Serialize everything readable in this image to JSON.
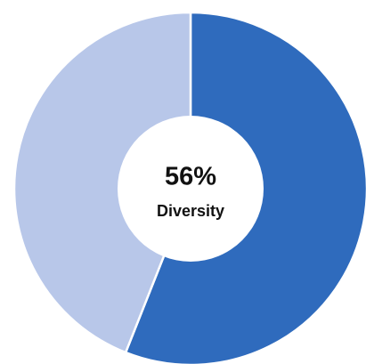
{
  "chart_data": {
    "type": "donut",
    "categories": [
      "Diversity",
      null
    ],
    "values": [
      56,
      44
    ],
    "value_labels": [
      "56%",
      null
    ],
    "colors": [
      "#2f6bbd",
      "#b8c7e9"
    ]
  }
}
